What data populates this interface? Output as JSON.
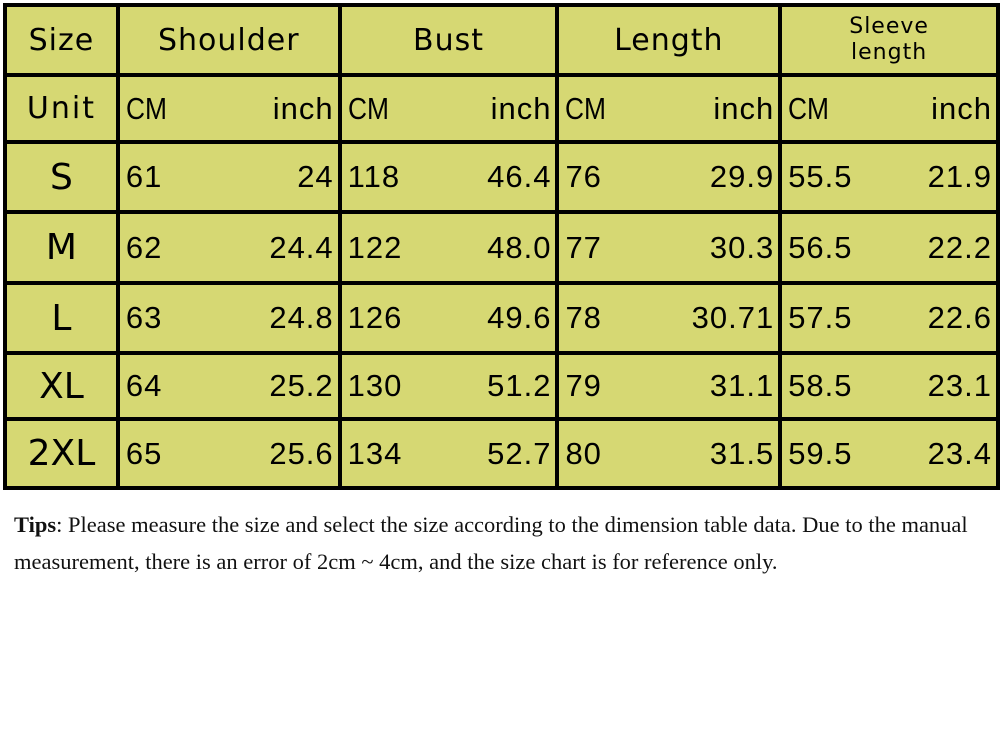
{
  "table": {
    "size_label": "Size",
    "unit_label": "Unit",
    "columns": [
      "Shoulder",
      "Bust",
      "Length",
      "Sleeve length"
    ],
    "sleeve_lines": [
      "Sleeve",
      "length"
    ],
    "units": {
      "cm": "CM",
      "inch": "inch"
    },
    "rows": [
      {
        "size": "S",
        "values": [
          "61",
          "24",
          "118",
          "46.4",
          "76",
          "29.9",
          "55.5",
          "21.9"
        ]
      },
      {
        "size": "M",
        "values": [
          "62",
          "24.4",
          "122",
          "48.0",
          "77",
          "30.3",
          "56.5",
          "22.2"
        ]
      },
      {
        "size": "L",
        "values": [
          "63",
          "24.8",
          "126",
          "49.6",
          "78",
          "30.71",
          "57.5",
          "22.6"
        ]
      },
      {
        "size": "XL",
        "values": [
          "64",
          "25.2",
          "130",
          "51.2",
          "79",
          "31.1",
          "58.5",
          "23.1"
        ]
      },
      {
        "size": "2XL",
        "values": [
          "65",
          "25.6",
          "134",
          "52.7",
          "80",
          "31.5",
          "59.5",
          "23.4"
        ]
      }
    ],
    "cell_color": "#d6d873",
    "border_color": "#000000"
  },
  "tips": {
    "label": "Tips",
    "text": ": Please measure the size and select the size according to the dimension table data. Due to the manual measurement, there is an error of 2cm ~ 4cm, and the size chart is for reference only."
  }
}
